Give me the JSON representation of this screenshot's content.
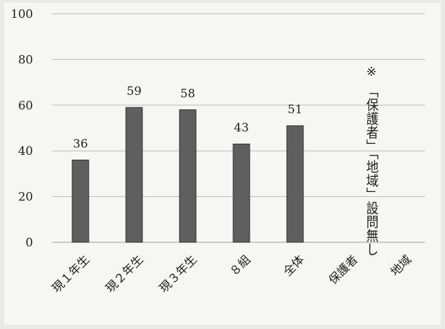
{
  "chart_data": {
    "type": "bar",
    "categories": [
      "現１年生",
      "現２年生",
      "現３年生",
      "８組",
      "全体",
      "保護者",
      "地域"
    ],
    "values": [
      36,
      59,
      58,
      43,
      51,
      null,
      null
    ],
    "data_labels": [
      "36",
      "59",
      "58",
      "43",
      "51",
      "",
      ""
    ],
    "ylim": [
      0,
      100
    ],
    "yticks": [
      0,
      20,
      40,
      60,
      80,
      100
    ],
    "grid": true,
    "colors": {
      "bar": "#5f5f5f",
      "bar_edge": "#2e2e2e",
      "grid": "#b9b9b9"
    },
    "annotation": {
      "mark": "※",
      "text": "「保護者」「地域」設問無し"
    }
  }
}
